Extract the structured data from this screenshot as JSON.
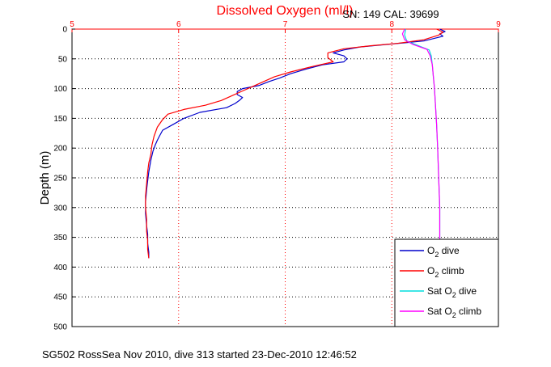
{
  "chart_data": {
    "type": "line",
    "title": "Dissolved Oxygen (ml/l)",
    "subtitle": "SN: 149  CAL: 39699",
    "xlabel": "",
    "ylabel": "Depth (m)",
    "caption": "SG502 RossSea Nov 2010, dive 313 started 23-Dec-2010 12:46:52",
    "xlim": [
      5,
      9
    ],
    "ylim": [
      0,
      500
    ],
    "y_reversed": true,
    "x_axis_position": "top",
    "x_ticks": [
      "5",
      "6",
      "7",
      "8",
      "9"
    ],
    "y_ticks": [
      "0",
      "50",
      "100",
      "150",
      "200",
      "250",
      "300",
      "350",
      "400",
      "450",
      "500"
    ],
    "grid": true,
    "legend_position": "bottom-right",
    "legend": [
      {
        "prefix": "O",
        "sub": "2",
        "suffix": " dive"
      },
      {
        "prefix": "O",
        "sub": "2",
        "suffix": " climb"
      },
      {
        "prefix": "Sat O",
        "sub": "2",
        "suffix": " dive"
      },
      {
        "prefix": "Sat O",
        "sub": "2",
        "suffix": " climb"
      }
    ],
    "series": [
      {
        "color": "#0000cc",
        "points": [
          [
            8.45,
            0
          ],
          [
            8.5,
            4
          ],
          [
            8.45,
            8
          ],
          [
            8.48,
            12
          ],
          [
            8.3,
            20
          ],
          [
            8.0,
            25
          ],
          [
            7.7,
            30
          ],
          [
            7.55,
            35
          ],
          [
            7.45,
            40
          ],
          [
            7.55,
            45
          ],
          [
            7.58,
            50
          ],
          [
            7.55,
            55
          ],
          [
            7.35,
            60
          ],
          [
            7.2,
            67
          ],
          [
            7.05,
            75
          ],
          [
            6.95,
            82
          ],
          [
            6.85,
            88
          ],
          [
            6.75,
            95
          ],
          [
            6.6,
            100
          ],
          [
            6.55,
            105
          ],
          [
            6.55,
            110
          ],
          [
            6.6,
            115
          ],
          [
            6.57,
            120
          ],
          [
            6.53,
            125
          ],
          [
            6.45,
            132
          ],
          [
            6.2,
            140
          ],
          [
            6.05,
            150
          ],
          [
            5.95,
            160
          ],
          [
            5.85,
            170
          ],
          [
            5.82,
            180
          ],
          [
            5.8,
            187
          ],
          [
            5.78,
            195
          ],
          [
            5.76,
            205
          ],
          [
            5.74,
            220
          ],
          [
            5.72,
            240
          ],
          [
            5.71,
            255
          ],
          [
            5.7,
            270
          ],
          [
            5.69,
            290
          ],
          [
            5.69,
            310
          ],
          [
            5.7,
            330
          ],
          [
            5.71,
            345
          ],
          [
            5.71,
            360
          ],
          [
            5.72,
            375
          ],
          [
            5.72,
            385
          ]
        ]
      },
      {
        "color": "#ff0000",
        "points": [
          [
            8.42,
            0
          ],
          [
            8.48,
            5
          ],
          [
            8.44,
            10
          ],
          [
            8.3,
            18
          ],
          [
            8.05,
            24
          ],
          [
            7.8,
            28
          ],
          [
            7.55,
            33
          ],
          [
            7.4,
            40
          ],
          [
            7.4,
            48
          ],
          [
            7.45,
            55
          ],
          [
            7.25,
            63
          ],
          [
            7.05,
            72
          ],
          [
            6.9,
            80
          ],
          [
            6.8,
            88
          ],
          [
            6.7,
            96
          ],
          [
            6.6,
            104
          ],
          [
            6.5,
            112
          ],
          [
            6.4,
            120
          ],
          [
            6.25,
            128
          ],
          [
            6.05,
            135
          ],
          [
            5.9,
            143
          ],
          [
            5.85,
            152
          ],
          [
            5.8,
            165
          ],
          [
            5.77,
            180
          ],
          [
            5.75,
            195
          ],
          [
            5.74,
            210
          ],
          [
            5.72,
            225
          ],
          [
            5.71,
            240
          ],
          [
            5.7,
            260
          ],
          [
            5.69,
            280
          ],
          [
            5.69,
            300
          ],
          [
            5.7,
            320
          ],
          [
            5.7,
            340
          ],
          [
            5.71,
            355
          ],
          [
            5.71,
            370
          ],
          [
            5.72,
            385
          ]
        ]
      },
      {
        "color": "#00dddd",
        "points": [
          [
            8.13,
            0
          ],
          [
            8.12,
            10
          ],
          [
            8.14,
            20
          ],
          [
            8.25,
            28
          ],
          [
            8.35,
            35
          ],
          [
            8.37,
            45
          ],
          [
            8.38,
            60
          ],
          [
            8.39,
            80
          ],
          [
            8.4,
            100
          ],
          [
            8.41,
            130
          ],
          [
            8.42,
            160
          ],
          [
            8.43,
            200
          ],
          [
            8.44,
            250
          ],
          [
            8.45,
            300
          ],
          [
            8.45,
            330
          ],
          [
            8.45,
            355
          ]
        ]
      },
      {
        "color": "#ff00ff",
        "points": [
          [
            8.12,
            0
          ],
          [
            8.1,
            8
          ],
          [
            8.12,
            18
          ],
          [
            8.2,
            26
          ],
          [
            8.33,
            34
          ],
          [
            8.36,
            45
          ],
          [
            8.38,
            60
          ],
          [
            8.39,
            80
          ],
          [
            8.4,
            100
          ],
          [
            8.41,
            130
          ],
          [
            8.42,
            160
          ],
          [
            8.43,
            200
          ],
          [
            8.44,
            250
          ],
          [
            8.45,
            300
          ],
          [
            8.45,
            330
          ],
          [
            8.45,
            355
          ]
        ]
      }
    ]
  }
}
